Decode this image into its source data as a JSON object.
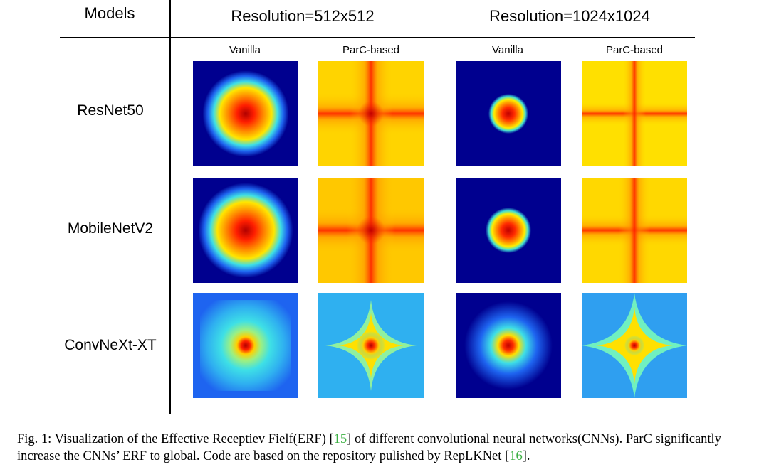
{
  "header": {
    "models": "Models",
    "res_512": "Resolution=512x512",
    "res_1024": "Resolution=1024x1024",
    "sub_vanilla": "Vanilla",
    "sub_parc": "ParC-based"
  },
  "rows": [
    {
      "model": "ResNet50"
    },
    {
      "model": "MobileNetV2"
    },
    {
      "model": "ConvNeXt-XT"
    }
  ],
  "caption": {
    "pre": "Fig. 1: Visualization of the Effective Receptiev Fielf(ERF) [",
    "ref1": "15",
    "mid": "] of different convolutional neural networks(CNNs). ParC significantly increase the CNNs’ ERF to global. Code are based on the repository pulished by RepLKNet [",
    "ref2": "16",
    "post": "]."
  },
  "colors": {
    "dark_blue": "#00008f",
    "blue": "#1e64f0",
    "light_blue": "#2fb0f0",
    "cyan": "#3ee0e6",
    "yellow": "#ffe600",
    "orange": "#ff8c00",
    "red": "#ff1e00",
    "dark_red": "#a00000"
  }
}
